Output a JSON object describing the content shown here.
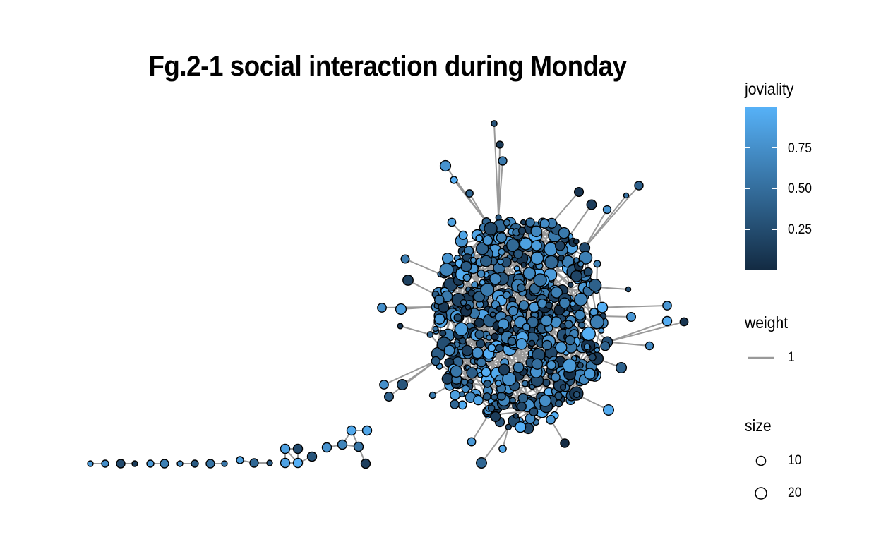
{
  "title": "Fg.2-1 social interaction during Monday",
  "legend": {
    "color": {
      "title": "joviality",
      "low_color": "#132B43",
      "high_color": "#56B1F7",
      "ticks": [
        "0.75",
        "0.50",
        "0.25"
      ]
    },
    "edge": {
      "title": "weight",
      "color": "#999999",
      "label": "1"
    },
    "size": {
      "title": "size",
      "labels": [
        "10",
        "20"
      ]
    }
  }
}
